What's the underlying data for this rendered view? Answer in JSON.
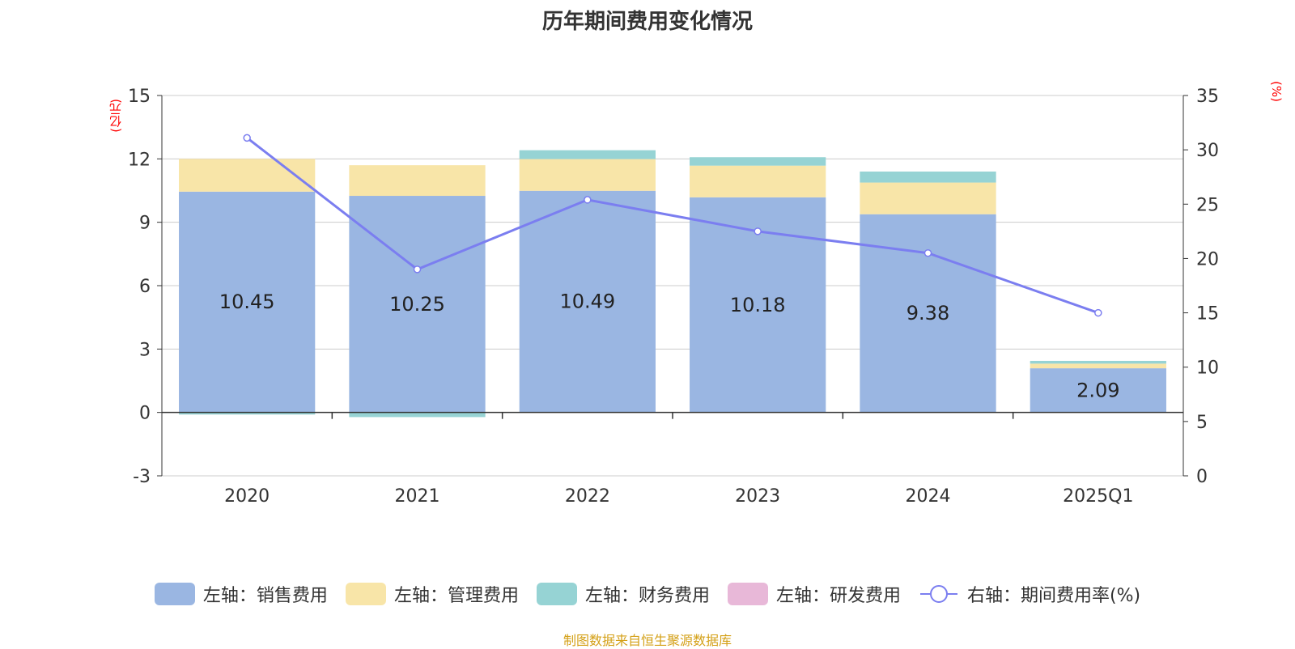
{
  "chart_data": {
    "type": "bar",
    "title": "历年期间费用变化情况",
    "left_unit": "(亿元)",
    "right_unit": "(%)",
    "categories": [
      "2020",
      "2021",
      "2022",
      "2023",
      "2024",
      "2025Q1"
    ],
    "left_axis": {
      "ylim": [
        -3,
        15
      ],
      "ticks": [
        -3,
        0,
        3,
        6,
        9,
        12,
        15
      ]
    },
    "right_axis": {
      "ylim": [
        0,
        35
      ],
      "ticks": [
        0,
        5,
        10,
        15,
        20,
        25,
        30,
        35
      ]
    },
    "stacked_series": [
      {
        "name": "左轴：销售费用",
        "color": "#9ab6e2",
        "values": [
          10.45,
          10.25,
          10.49,
          10.18,
          9.38,
          2.09
        ],
        "show_labels": true
      },
      {
        "name": "左轴：管理费用",
        "color": "#f8e5a8",
        "values": [
          1.55,
          1.45,
          1.5,
          1.5,
          1.5,
          0.22
        ]
      },
      {
        "name": "左轴：财务费用",
        "color": "#96d3d4",
        "values": [
          -0.1,
          -0.22,
          0.42,
          0.4,
          0.52,
          0.13
        ]
      },
      {
        "name": "左轴：研发费用",
        "color": "#e8b8d8",
        "values": [
          0,
          0,
          0,
          0,
          0,
          0
        ]
      }
    ],
    "line_series": {
      "name": "右轴：期间费用率(%)",
      "color": "#7b7ef0",
      "values": [
        31.1,
        19.0,
        25.4,
        22.5,
        20.5,
        15.0
      ]
    }
  },
  "source": "制图数据来自恒生聚源数据库"
}
